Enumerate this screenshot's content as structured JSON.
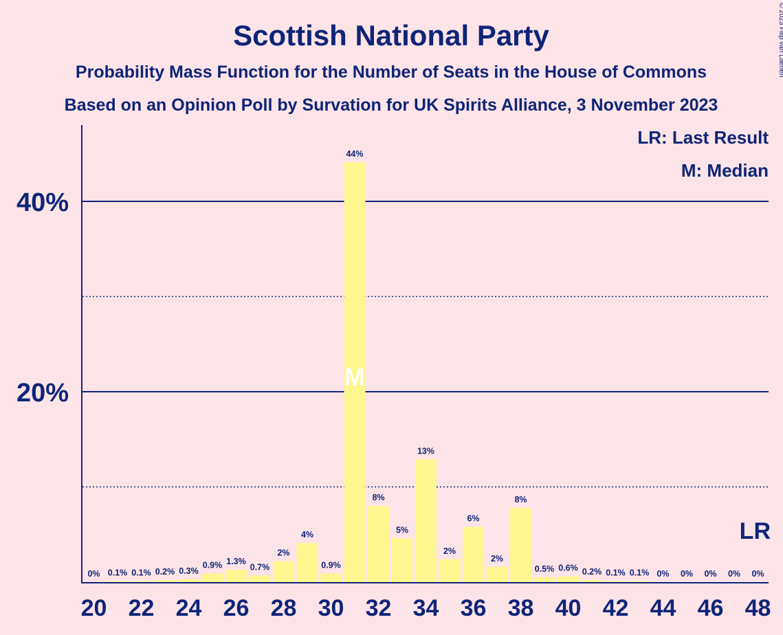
{
  "chart_data": {
    "type": "bar",
    "title": "Scottish National Party",
    "subtitle": "Probability Mass Function for the Number of Seats in the House of Commons",
    "subtitle2": "Based on an Opinion Poll by Survation for UK Spirits Alliance, 3 November 2023",
    "copyright": "© 2023 Filip van Laenen",
    "legend": {
      "lr": "LR: Last Result",
      "median": "M: Median",
      "placement": "top-right"
    },
    "median_label": "M",
    "last_result_label": "LR",
    "median_seat": 31,
    "last_result_seat": 48,
    "ylim": [
      0,
      48
    ],
    "y_major_ticks": [
      {
        "value": 20,
        "label": "20%"
      },
      {
        "value": 40,
        "label": "40%"
      }
    ],
    "y_minor_gridlines": [
      10,
      30
    ],
    "x_tick_labels": [
      "20",
      "22",
      "24",
      "26",
      "28",
      "30",
      "32",
      "34",
      "36",
      "38",
      "40",
      "42",
      "44",
      "46",
      "48"
    ],
    "seats": [
      20,
      21,
      22,
      23,
      24,
      25,
      26,
      27,
      28,
      29,
      30,
      31,
      32,
      33,
      34,
      35,
      36,
      37,
      38,
      39,
      40,
      41,
      42,
      43,
      44,
      45,
      46,
      47,
      48
    ],
    "values": [
      0,
      0.1,
      0.1,
      0.2,
      0.3,
      0.9,
      1.3,
      0.7,
      2.2,
      4.1,
      0.9,
      44.1,
      8.0,
      4.6,
      12.9,
      2.4,
      5.8,
      1.6,
      7.8,
      0.5,
      0.6,
      0.2,
      0.1,
      0.1,
      0,
      0,
      0,
      0,
      0
    ],
    "value_labels": [
      "0%",
      "0.1%",
      "0.1%",
      "0.2%",
      "0.3%",
      "0.9%",
      "1.3%",
      "0.7%",
      "2%",
      "4%",
      "0.9%",
      "44%",
      "8%",
      "5%",
      "13%",
      "2%",
      "6%",
      "2%",
      "8%",
      "0.5%",
      "0.6%",
      "0.2%",
      "0.1%",
      "0.1%",
      "0%",
      "0%",
      "0%",
      "0%",
      "0%"
    ],
    "colors": {
      "bar": "#fef68f",
      "text": "#0f2577",
      "background": "#fde4e8"
    }
  }
}
